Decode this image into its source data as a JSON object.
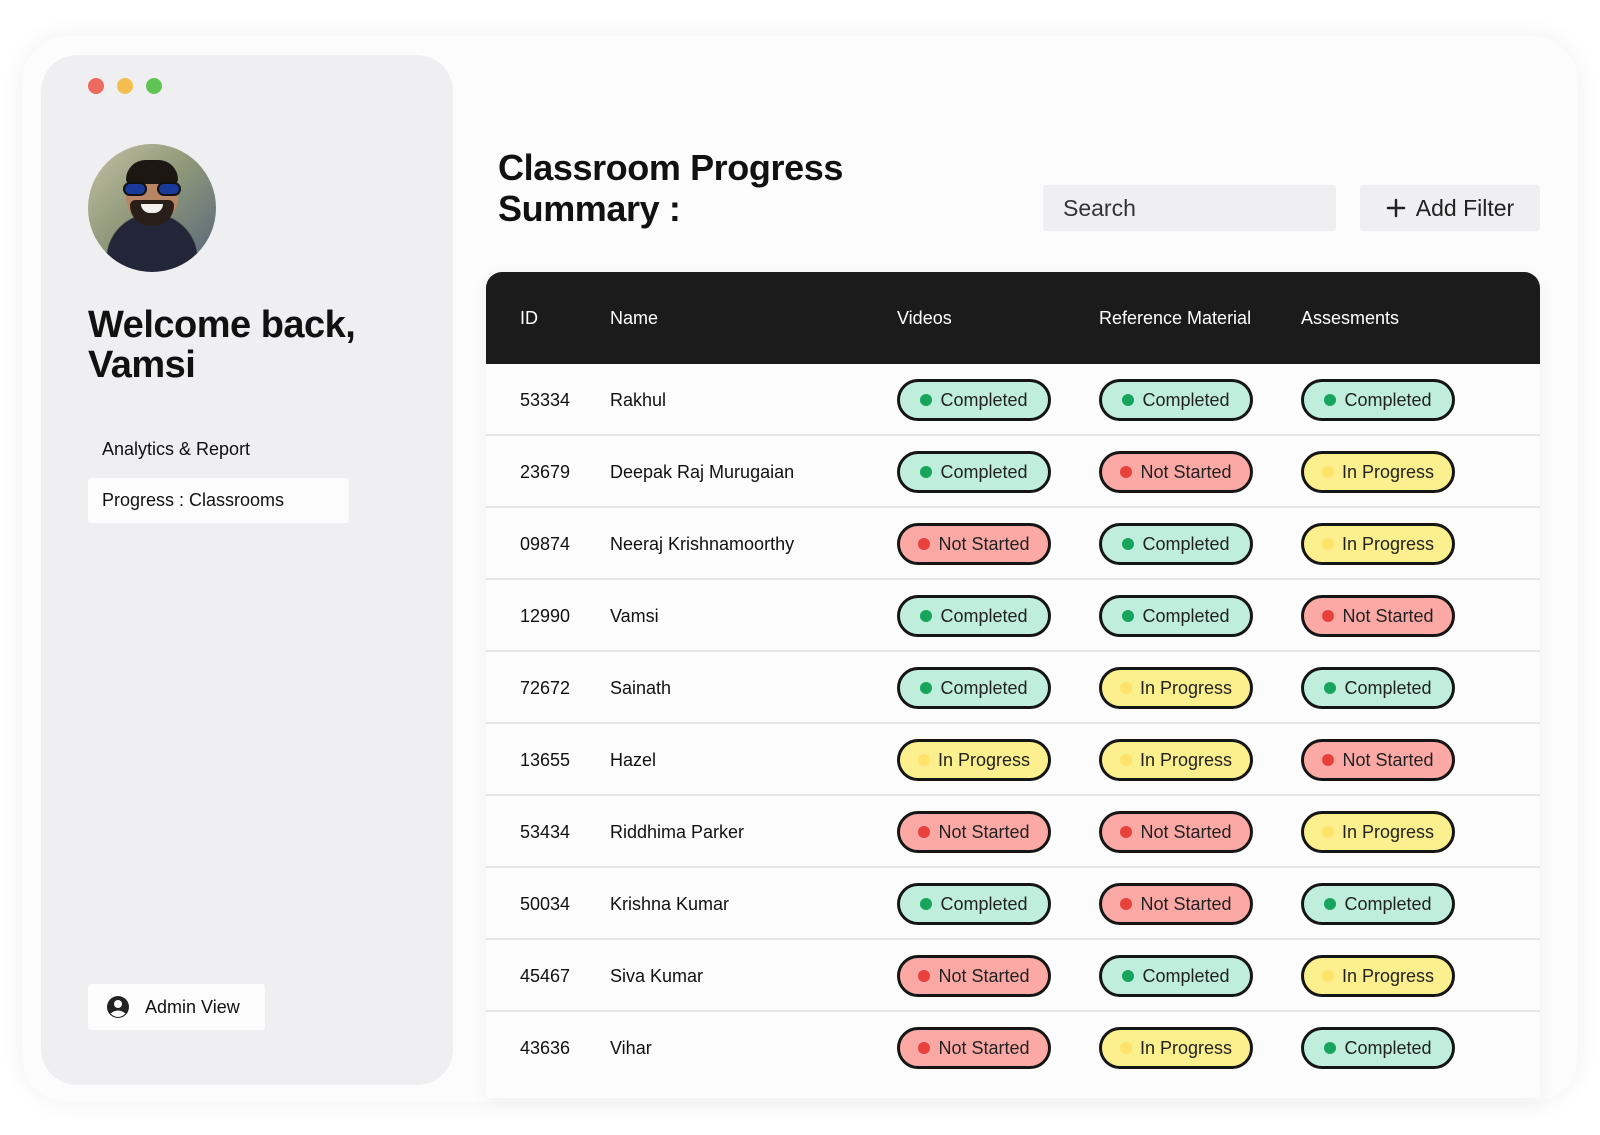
{
  "window_controls": [
    "close",
    "minimize",
    "maximize"
  ],
  "sidebar": {
    "welcome": "Welcome back, Vamsi",
    "nav": [
      {
        "label": "Analytics & Report",
        "active": false
      },
      {
        "label": "Progress : Classrooms",
        "active": true
      }
    ],
    "admin_label": "Admin View",
    "admin_icon": "user-circle-icon"
  },
  "header": {
    "title": "Classroom Progress Summary :",
    "search_placeholder": "Search",
    "add_filter_label": "Add Filter",
    "add_filter_icon": "plus-icon"
  },
  "table": {
    "columns": [
      "ID",
      "Name",
      "Videos",
      "Reference Material",
      "Assesments"
    ],
    "rows": [
      {
        "id": "53334",
        "name": "Rakhul",
        "videos": "Completed",
        "reference": "Completed",
        "assessments": "Completed"
      },
      {
        "id": "23679",
        "name": "Deepak Raj Murugaian",
        "videos": "Completed",
        "reference": "Not Started",
        "assessments": "In Progress"
      },
      {
        "id": "09874",
        "name": "Neeraj Krishnamoorthy",
        "videos": "Not Started",
        "reference": "Completed",
        "assessments": "In Progress"
      },
      {
        "id": "12990",
        "name": "Vamsi",
        "videos": "Completed",
        "reference": "Completed",
        "assessments": "Not Started"
      },
      {
        "id": "72672",
        "name": "Sainath",
        "videos": "Completed",
        "reference": "In Progress",
        "assessments": "Completed"
      },
      {
        "id": "13655",
        "name": "Hazel",
        "videos": "In Progress",
        "reference": "In Progress",
        "assessments": "Not Started"
      },
      {
        "id": "53434",
        "name": "Riddhima Parker",
        "videos": "Not Started",
        "reference": "Not Started",
        "assessments": "In Progress"
      },
      {
        "id": "50034",
        "name": "Krishna Kumar",
        "videos": "Completed",
        "reference": "Not Started",
        "assessments": "Completed"
      },
      {
        "id": "45467",
        "name": "Siva Kumar",
        "videos": "Not Started",
        "reference": "Completed",
        "assessments": "In Progress"
      },
      {
        "id": "43636",
        "name": "Vihar",
        "videos": "Not Started",
        "reference": "In Progress",
        "assessments": "Completed"
      }
    ]
  },
  "status_colors": {
    "Completed": {
      "fill": "#bfeedd",
      "dot": "#17a55d"
    },
    "Not Started": {
      "fill": "#fca9a5",
      "dot": "#e8413b"
    },
    "In Progress": {
      "fill": "#fcef8d",
      "dot": "#ffe26a"
    }
  }
}
